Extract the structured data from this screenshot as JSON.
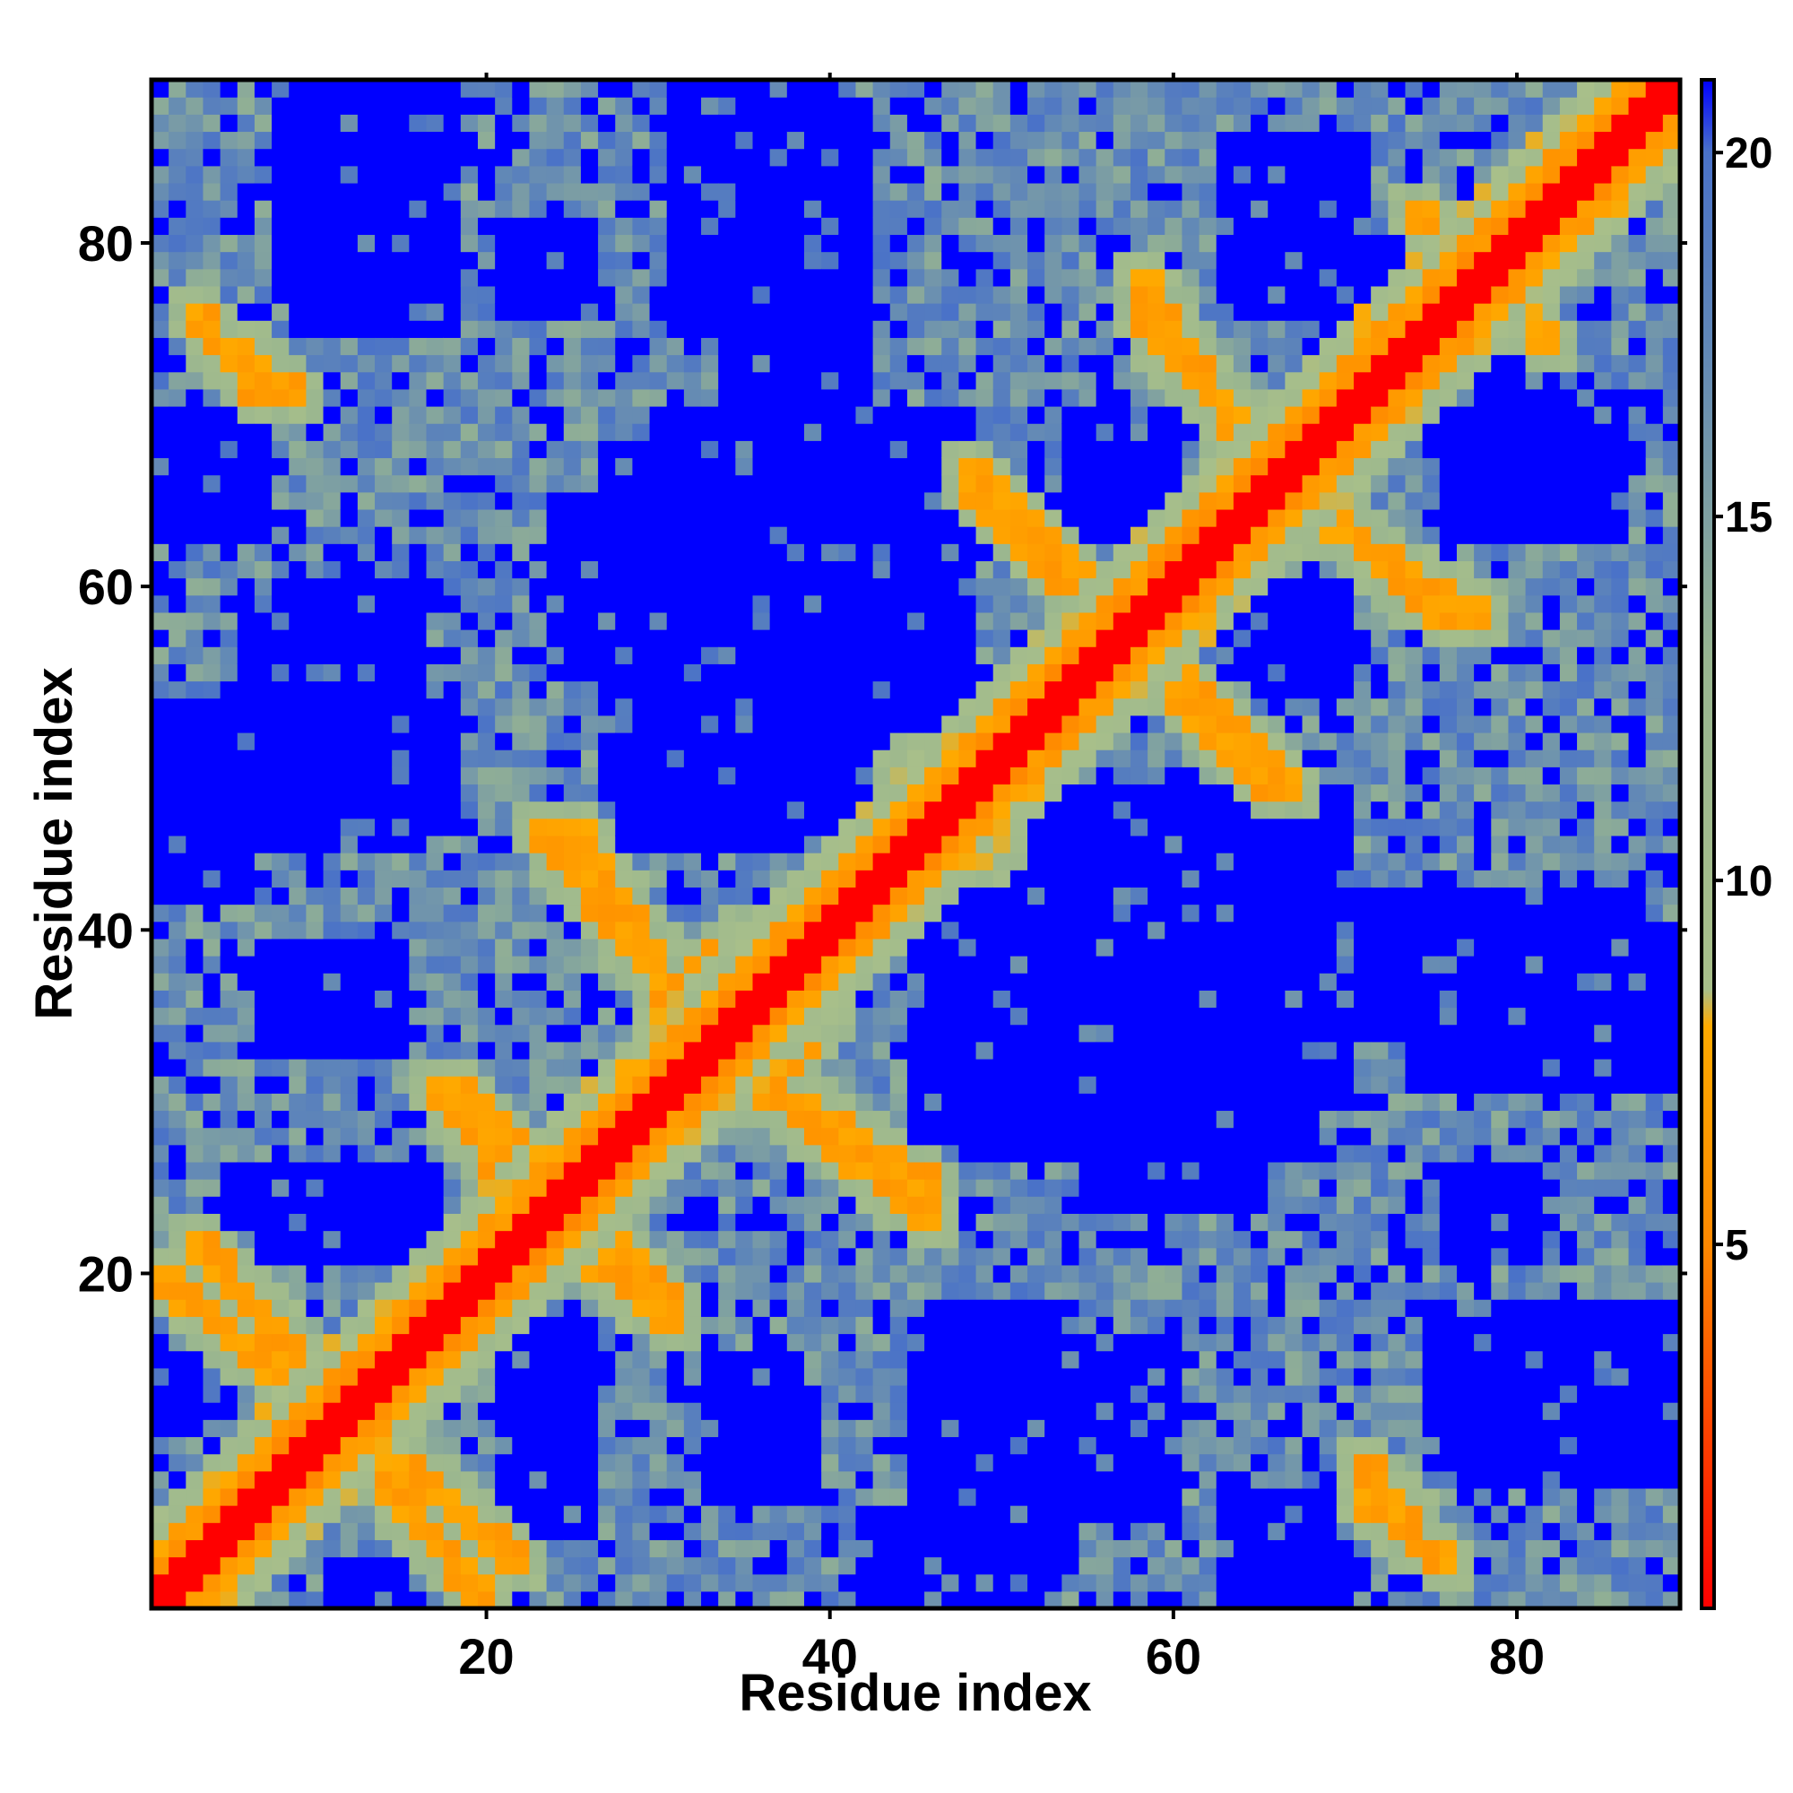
{
  "chart_data": {
    "type": "heatmap",
    "title": "",
    "xlabel": "Residue index",
    "ylabel": "Residue index",
    "n_residues": 89,
    "xlim": [
      1,
      89
    ],
    "ylim": [
      1,
      89
    ],
    "x_ticks": [
      20,
      40,
      60,
      80
    ],
    "y_ticks": [
      20,
      40,
      60,
      80
    ],
    "colorbar": {
      "range": [
        0,
        21
      ],
      "ticks": [
        5,
        10,
        15,
        20
      ],
      "stops": [
        {
          "value": 0,
          "color": "#ff0000"
        },
        {
          "value": 5,
          "color": "#ff8800"
        },
        {
          "value": 8,
          "color": "#ffaa00"
        },
        {
          "value": 8.5,
          "color": "#a8bf8a"
        },
        {
          "value": 13,
          "color": "#98b590"
        },
        {
          "value": 17.5,
          "color": "#5f86b8"
        },
        {
          "value": 20,
          "color": "#4a72c8"
        },
        {
          "value": 21,
          "color": "#0000ff"
        }
      ]
    },
    "description_values": {
      "diagonal": 0,
      "helix_contacts": 6,
      "background": 12,
      "far": 21
    },
    "contact_bands": [
      {
        "from": [
          3,
          22
        ],
        "to": [
          9,
          15
        ]
      },
      {
        "from": [
          5,
          74
        ],
        "to": [
          9,
          71
        ]
      },
      {
        "from": [
          9,
          14
        ],
        "to": [
          20,
          1
        ]
      },
      {
        "from": [
          18,
          31
        ],
        "to": [
          25,
          24
        ]
      },
      {
        "from": [
          23,
          46
        ],
        "to": [
          31,
          36
        ]
      },
      {
        "from": [
          25,
          22
        ],
        "to": [
          31,
          17
        ]
      },
      {
        "from": [
          30,
          36
        ],
        "to": [
          36,
          40
        ]
      },
      {
        "from": [
          38,
          30
        ],
        "to": [
          46,
          25
        ]
      },
      {
        "from": [
          45,
          50
        ],
        "to": [
          49,
          44
        ]
      },
      {
        "from": [
          48,
          67
        ],
        "to": [
          56,
          59
        ]
      },
      {
        "from": [
          58,
          56
        ],
        "to": [
          66,
          48
        ]
      },
      {
        "from": [
          58,
          76
        ],
        "to": [
          65,
          68
        ]
      },
      {
        "from": [
          67,
          65
        ],
        "to": [
          78,
          58
        ]
      },
      {
        "from": [
          71,
          7
        ],
        "to": [
          76,
          3
        ]
      },
      {
        "from": [
          74,
          82
        ],
        "to": [
          80,
          76
        ]
      }
    ],
    "far_regions": [
      {
        "x": [
          9,
          18
        ],
        "y": [
          75,
          89
        ]
      },
      {
        "x": [
          31,
          40
        ],
        "y": [
          75,
          89
        ]
      },
      {
        "x": [
          68,
          71
        ],
        "y": [
          76,
          86
        ]
      },
      {
        "x": [
          1,
          6
        ],
        "y": [
          64,
          70
        ]
      },
      {
        "x": [
          30,
          48
        ],
        "y": [
          45,
          70
        ]
      },
      {
        "x": [
          55,
          60
        ],
        "y": [
          63,
          68
        ]
      },
      {
        "x": [
          76,
          86
        ],
        "y": [
          63,
          69
        ]
      },
      {
        "x": [
          65,
          70
        ],
        "y": [
          54,
          60
        ]
      },
      {
        "x": [
          1,
          18
        ],
        "y": [
          46,
          53
        ]
      },
      {
        "x": [
          1,
          6
        ],
        "y": [
          42,
          48
        ]
      },
      {
        "x": [
          45,
          68
        ],
        "y": [
          27,
          43
        ]
      },
      {
        "x": [
          70,
          88
        ],
        "y": [
          34,
          42
        ]
      },
      {
        "x": [
          55,
          65
        ],
        "y": [
          24,
          48
        ]
      },
      {
        "x": [
          9,
          15
        ],
        "y": [
          33,
          38
        ]
      },
      {
        "x": [
          8,
          17
        ],
        "y": [
          21,
          26
        ]
      },
      {
        "x": [
          21,
          26
        ],
        "y": [
          5,
          14
        ]
      },
      {
        "x": [
          33,
          39
        ],
        "y": [
          7,
          13
        ]
      },
      {
        "x": [
          45,
          60
        ],
        "y": [
          6,
          16
        ]
      },
      {
        "x": [
          63,
          70
        ],
        "y": [
          1,
          7
        ]
      },
      {
        "x": [
          77,
          88
        ],
        "y": [
          8,
          16
        ]
      },
      {
        "x": [
          76,
          81
        ],
        "y": [
          21,
          26
        ]
      },
      {
        "x": [
          1,
          3
        ],
        "y": [
          11,
          15
        ]
      },
      {
        "x": [
          69,
          74
        ],
        "y": [
          74,
          80
        ]
      }
    ]
  }
}
